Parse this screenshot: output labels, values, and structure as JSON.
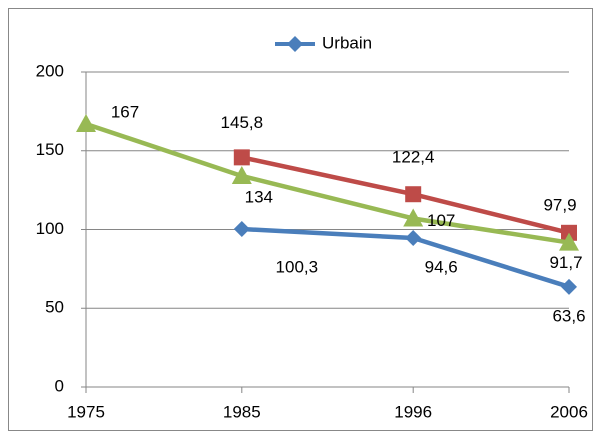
{
  "chart_data": {
    "type": "line",
    "x": [
      1975,
      1985,
      1996,
      2006
    ],
    "xlim": [
      1975,
      2006
    ],
    "xticks": [
      1975,
      1985,
      1996,
      2006
    ],
    "ylim": [
      0,
      200
    ],
    "yticks": [
      0,
      50,
      100,
      150,
      200
    ],
    "grid": true,
    "series": [
      {
        "name": "Urbain",
        "color": "#4a7ebb",
        "marker": "diamond",
        "values": [
          null,
          100.3,
          94.6,
          63.6
        ],
        "value_labels": [
          null,
          "100,3",
          "94,6",
          "63,6"
        ]
      },
      {
        "color": "#be4b48",
        "marker": "square",
        "values": [
          null,
          145.8,
          122.4,
          97.9
        ],
        "value_labels": [
          null,
          "145,8",
          "122,4",
          "97,9"
        ]
      },
      {
        "color": "#98b954",
        "marker": "triangle",
        "values": [
          167,
          134,
          107,
          91.7
        ],
        "value_labels": [
          "167",
          "134",
          "107",
          "91,7"
        ]
      }
    ]
  }
}
